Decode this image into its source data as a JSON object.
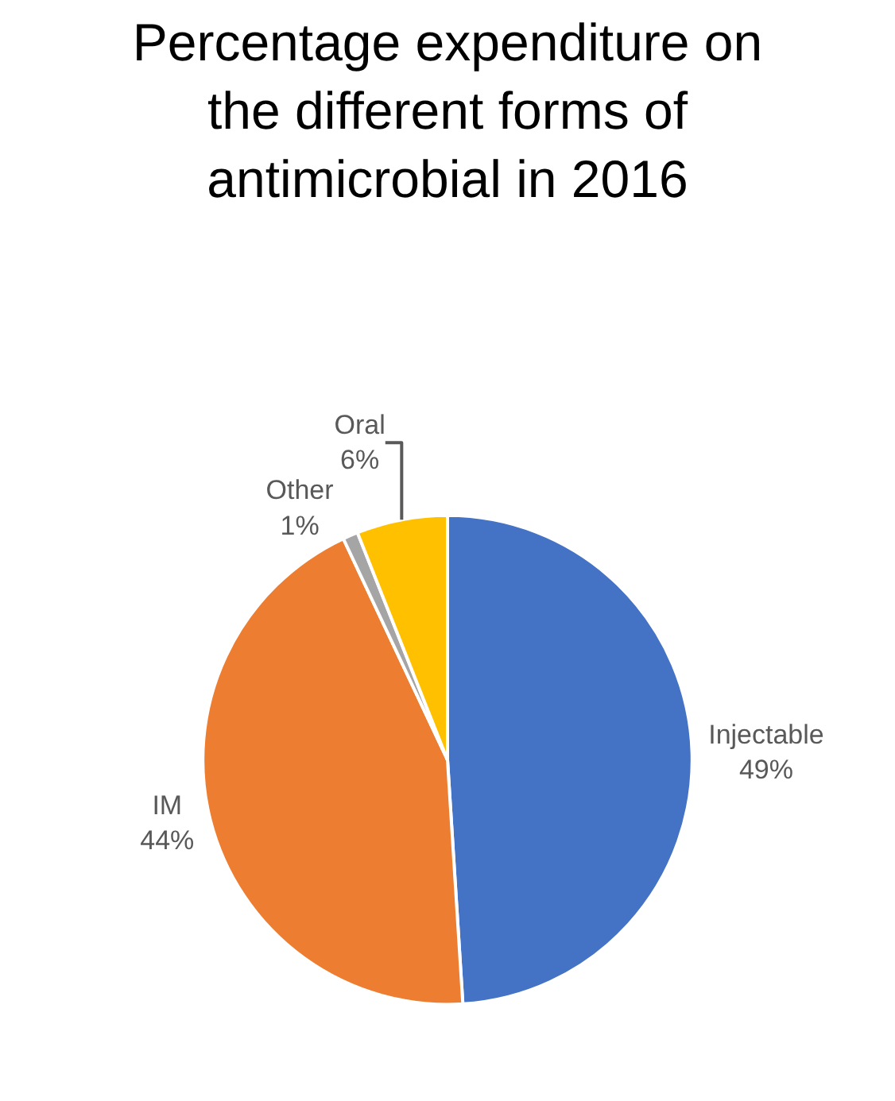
{
  "chart_data": {
    "type": "pie",
    "title": "Percentage expenditure on the different forms of antimicrobial in 2016",
    "categories": [
      "Injectable",
      "IM",
      "Other",
      "Oral"
    ],
    "values": [
      49,
      44,
      1,
      6
    ],
    "value_labels": [
      "49%",
      "44%",
      "1%",
      "6%"
    ],
    "colors": [
      "#4472c4",
      "#ed7d31",
      "#a5a5a5",
      "#ffc000"
    ],
    "legend": false
  }
}
